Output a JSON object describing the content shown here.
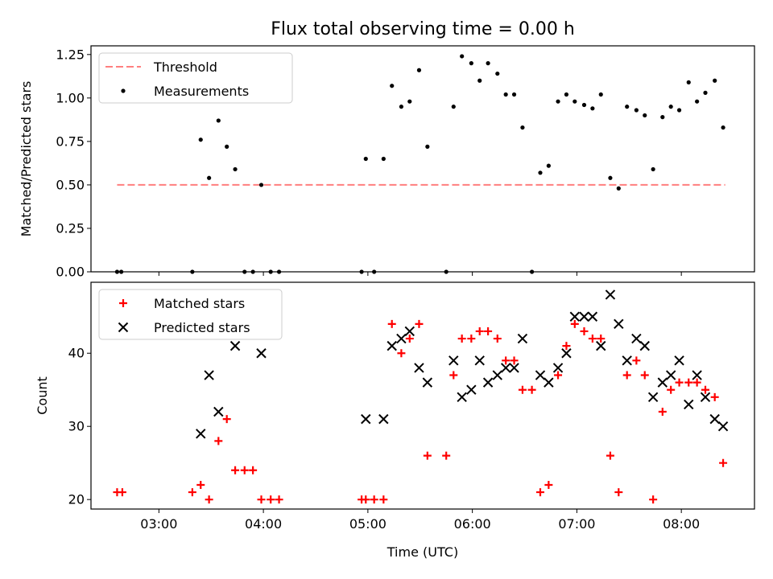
{
  "figure_title": "Flux total observing time = 0.00 h",
  "x_axis_label": "Time (UTC)",
  "x_tick_labels": [
    "03:00",
    "04:00",
    "05:00",
    "06:00",
    "07:00",
    "08:00"
  ],
  "colors": {
    "threshold": "#ff7f7f",
    "measurements": "#000000",
    "matched": "#ff0000",
    "predicted": "#000000"
  },
  "chart_data": [
    {
      "type": "scatter",
      "ylabel": "Matched/Predicted stars",
      "x_unit": "hours UTC",
      "xlim": [
        2.35,
        8.7
      ],
      "ylim": [
        0,
        1.3
      ],
      "yticks": [
        "0.00",
        "0.25",
        "0.50",
        "0.75",
        "1.00",
        "1.25"
      ],
      "legend": {
        "placement": "upper left",
        "entries": [
          "Threshold",
          "Measurements"
        ]
      },
      "grid": false,
      "threshold": {
        "name": "Threshold",
        "y": 0.5,
        "x_range": [
          2.6,
          8.42
        ],
        "style": "dashed"
      },
      "series": [
        {
          "name": "Measurements",
          "marker": "dot",
          "points": [
            [
              2.6,
              0
            ],
            [
              2.64,
              0
            ],
            [
              3.32,
              0
            ],
            [
              3.4,
              0.76
            ],
            [
              3.48,
              0.54
            ],
            [
              3.57,
              0.87
            ],
            [
              3.65,
              0.72
            ],
            [
              3.73,
              0.59
            ],
            [
              3.82,
              0
            ],
            [
              3.9,
              0
            ],
            [
              3.98,
              0.5
            ],
            [
              4.07,
              0
            ],
            [
              4.15,
              0
            ],
            [
              4.94,
              0
            ],
            [
              4.98,
              0.65
            ],
            [
              5.06,
              0
            ],
            [
              5.15,
              0.65
            ],
            [
              5.23,
              1.07
            ],
            [
              5.32,
              0.95
            ],
            [
              5.4,
              0.98
            ],
            [
              5.49,
              1.16
            ],
            [
              5.57,
              0.72
            ],
            [
              5.75,
              0
            ],
            [
              5.82,
              0.95
            ],
            [
              5.9,
              1.24
            ],
            [
              5.99,
              1.2
            ],
            [
              6.07,
              1.1
            ],
            [
              6.15,
              1.2
            ],
            [
              6.24,
              1.14
            ],
            [
              6.32,
              1.02
            ],
            [
              6.4,
              1.02
            ],
            [
              6.48,
              0.83
            ],
            [
              6.57,
              0
            ],
            [
              6.65,
              0.57
            ],
            [
              6.73,
              0.61
            ],
            [
              6.82,
              0.98
            ],
            [
              6.9,
              1.02
            ],
            [
              6.98,
              0.98
            ],
            [
              7.07,
              0.96
            ],
            [
              7.15,
              0.94
            ],
            [
              7.23,
              1.02
            ],
            [
              7.32,
              0.54
            ],
            [
              7.4,
              0.48
            ],
            [
              7.48,
              0.95
            ],
            [
              7.57,
              0.93
            ],
            [
              7.65,
              0.9
            ],
            [
              7.73,
              0.59
            ],
            [
              7.82,
              0.89
            ],
            [
              7.9,
              0.95
            ],
            [
              7.98,
              0.93
            ],
            [
              8.07,
              1.09
            ],
            [
              8.15,
              0.98
            ],
            [
              8.23,
              1.03
            ],
            [
              8.32,
              1.1
            ],
            [
              8.4,
              0.83
            ]
          ]
        }
      ]
    },
    {
      "type": "scatter",
      "ylabel": "Count",
      "xlabel": "Time (UTC)",
      "x_unit": "hours UTC",
      "xlim": [
        2.35,
        8.7
      ],
      "ylim": [
        18.7,
        49.7
      ],
      "yticks": [
        "20",
        "30",
        "40"
      ],
      "legend": {
        "placement": "upper left",
        "entries": [
          "Matched stars",
          "Predicted stars"
        ]
      },
      "grid": false,
      "series": [
        {
          "name": "Matched stars",
          "marker": "plus",
          "points": [
            [
              2.6,
              21
            ],
            [
              2.65,
              21
            ],
            [
              3.32,
              21
            ],
            [
              3.4,
              22
            ],
            [
              3.48,
              20
            ],
            [
              3.57,
              28
            ],
            [
              3.65,
              31
            ],
            [
              3.73,
              24
            ],
            [
              3.82,
              24
            ],
            [
              3.9,
              24
            ],
            [
              3.98,
              20
            ],
            [
              4.07,
              20
            ],
            [
              4.15,
              20
            ],
            [
              4.94,
              20
            ],
            [
              4.98,
              20
            ],
            [
              5.06,
              20
            ],
            [
              5.15,
              20
            ],
            [
              5.23,
              44
            ],
            [
              5.32,
              40
            ],
            [
              5.4,
              42
            ],
            [
              5.49,
              44
            ],
            [
              5.57,
              26
            ],
            [
              5.75,
              26
            ],
            [
              5.82,
              37
            ],
            [
              5.9,
              42
            ],
            [
              5.99,
              42
            ],
            [
              6.07,
              43
            ],
            [
              6.15,
              43
            ],
            [
              6.24,
              42
            ],
            [
              6.32,
              39
            ],
            [
              6.4,
              39
            ],
            [
              6.48,
              35
            ],
            [
              6.57,
              35
            ],
            [
              6.65,
              21
            ],
            [
              6.73,
              22
            ],
            [
              6.82,
              37
            ],
            [
              6.9,
              41
            ],
            [
              6.98,
              44
            ],
            [
              7.07,
              43
            ],
            [
              7.15,
              42
            ],
            [
              7.23,
              42
            ],
            [
              7.32,
              26
            ],
            [
              7.4,
              21
            ],
            [
              7.48,
              37
            ],
            [
              7.57,
              39
            ],
            [
              7.65,
              37
            ],
            [
              7.73,
              20
            ],
            [
              7.82,
              32
            ],
            [
              7.9,
              35
            ],
            [
              7.98,
              36
            ],
            [
              8.07,
              36
            ],
            [
              8.15,
              36
            ],
            [
              8.23,
              35
            ],
            [
              8.32,
              34
            ],
            [
              8.4,
              25
            ]
          ]
        },
        {
          "name": "Predicted stars",
          "marker": "x",
          "points": [
            [
              3.4,
              29
            ],
            [
              3.48,
              37
            ],
            [
              3.57,
              32
            ],
            [
              3.73,
              41
            ],
            [
              3.98,
              40
            ],
            [
              4.98,
              31
            ],
            [
              5.15,
              31
            ],
            [
              5.23,
              41
            ],
            [
              5.32,
              42
            ],
            [
              5.4,
              43
            ],
            [
              5.49,
              38
            ],
            [
              5.57,
              36
            ],
            [
              5.82,
              39
            ],
            [
              5.9,
              34
            ],
            [
              5.99,
              35
            ],
            [
              6.07,
              39
            ],
            [
              6.15,
              36
            ],
            [
              6.24,
              37
            ],
            [
              6.32,
              38
            ],
            [
              6.4,
              38
            ],
            [
              6.48,
              42
            ],
            [
              6.65,
              37
            ],
            [
              6.73,
              36
            ],
            [
              6.82,
              38
            ],
            [
              6.9,
              40
            ],
            [
              6.98,
              45
            ],
            [
              7.07,
              45
            ],
            [
              7.15,
              45
            ],
            [
              7.23,
              41
            ],
            [
              7.32,
              48
            ],
            [
              7.4,
              44
            ],
            [
              7.48,
              39
            ],
            [
              7.57,
              42
            ],
            [
              7.65,
              41
            ],
            [
              7.73,
              34
            ],
            [
              7.82,
              36
            ],
            [
              7.9,
              37
            ],
            [
              7.98,
              39
            ],
            [
              8.07,
              33
            ],
            [
              8.15,
              37
            ],
            [
              8.23,
              34
            ],
            [
              8.32,
              31
            ],
            [
              8.4,
              30
            ]
          ]
        }
      ]
    }
  ]
}
